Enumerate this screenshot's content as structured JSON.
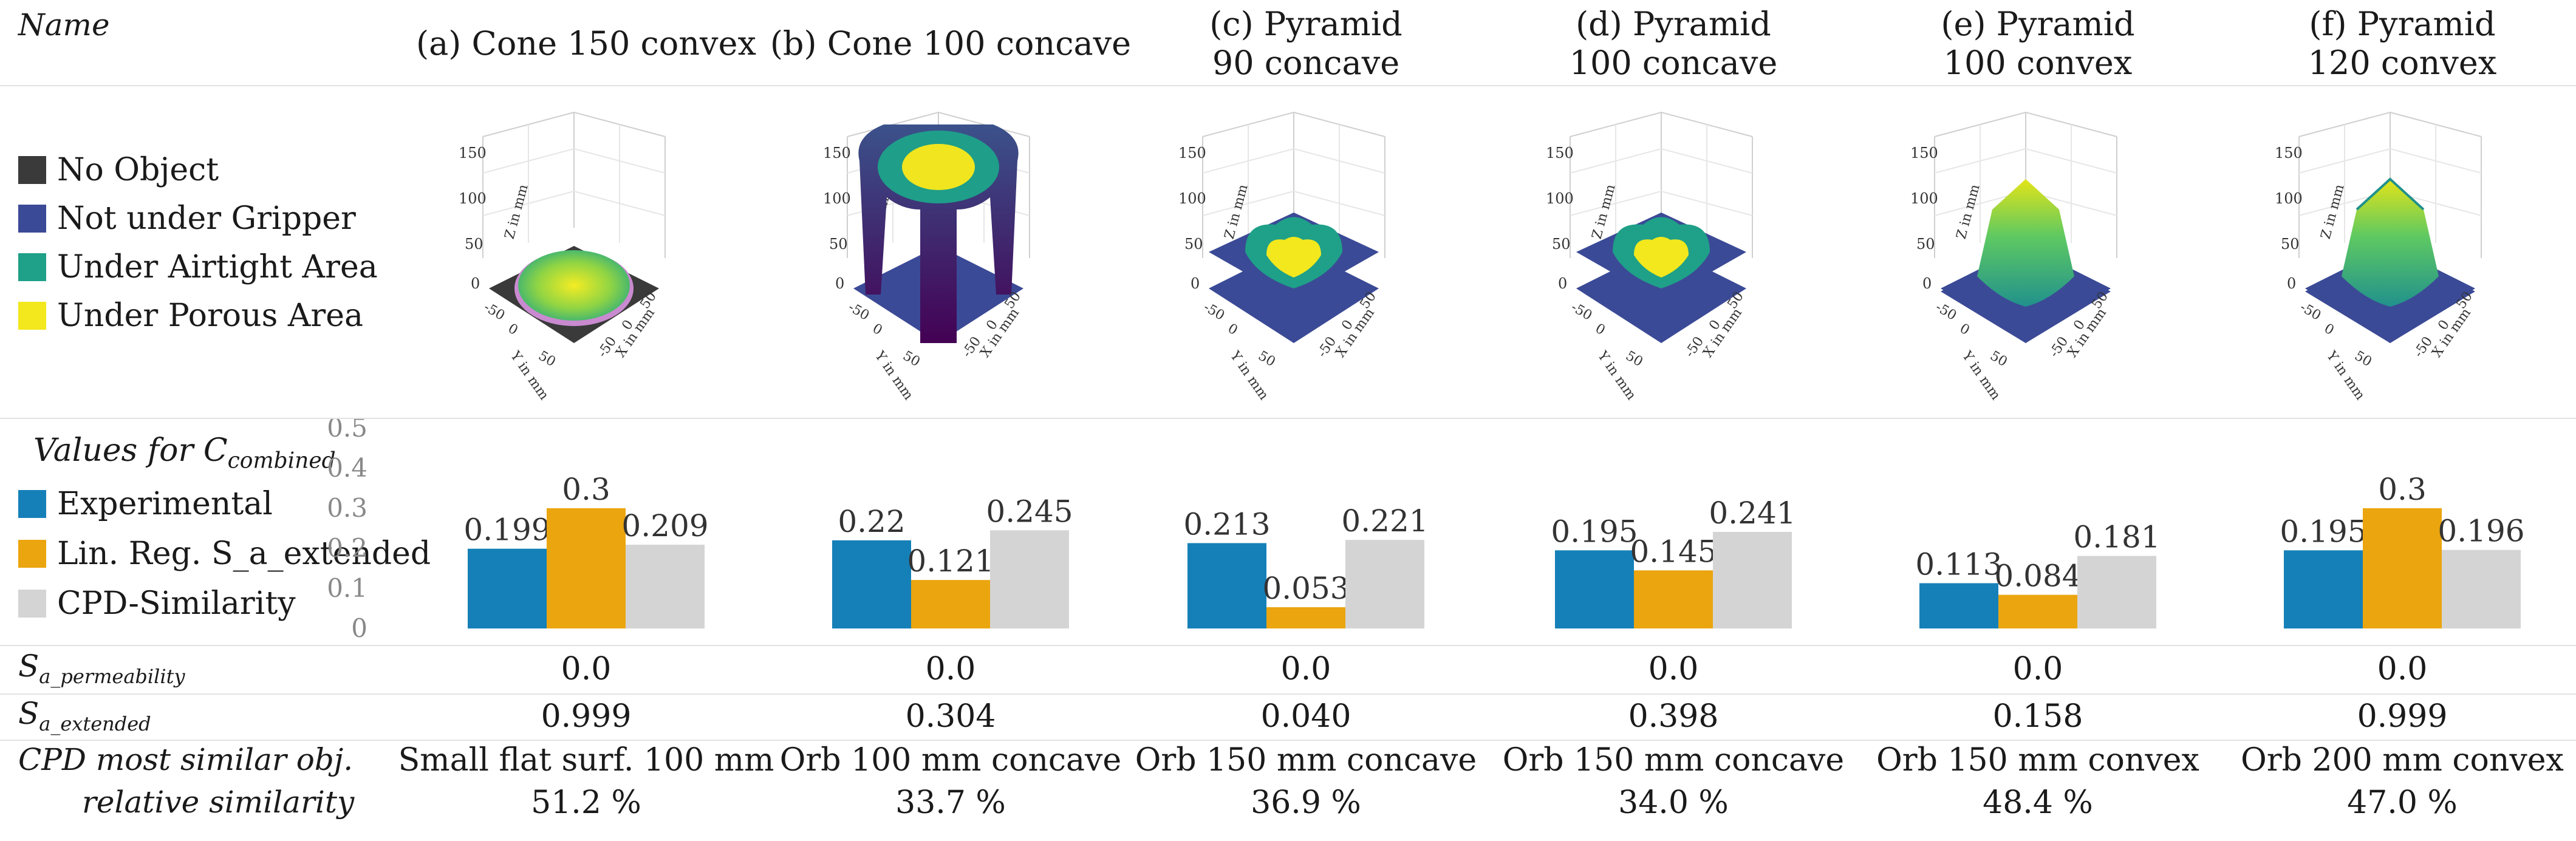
{
  "header": {
    "name_label": "Name"
  },
  "columns": [
    {
      "title": "(a) Cone 150 convex",
      "s_perm": "0.0",
      "s_ext": "0.999",
      "cpd_obj": "Small flat surf. 100 mm",
      "cpd_sim": "51.2 %"
    },
    {
      "title": "(b) Cone 100 concave",
      "s_perm": "0.0",
      "s_ext": "0.304",
      "cpd_obj": "Orb 100 mm concave",
      "cpd_sim": "33.7 %"
    },
    {
      "title": "(c) Pyramid 90 concave",
      "s_perm": "0.0",
      "s_ext": "0.040",
      "cpd_obj": "Orb 150 mm concave",
      "cpd_sim": "36.9 %"
    },
    {
      "title": "(d) Pyramid 100 concave",
      "s_perm": "0.0",
      "s_ext": "0.398",
      "cpd_obj": "Orb 150 mm concave",
      "cpd_sim": "34.0 %"
    },
    {
      "title": "(e) Pyramid 100 convex",
      "s_perm": "0.0",
      "s_ext": "0.158",
      "cpd_obj": "Orb 150 mm convex",
      "cpd_sim": "48.4 %"
    },
    {
      "title": "(f) Pyramid 120 convex",
      "s_perm": "0.0",
      "s_ext": "0.999",
      "cpd_obj": "Orb 200 mm convex",
      "cpd_sim": "47.0 %"
    }
  ],
  "legend_top": [
    {
      "label": "No Object",
      "color": "#3a3a3a"
    },
    {
      "label": "Not under Gripper",
      "color": "#3b4a96"
    },
    {
      "label": "Under Airtight Area",
      "color": "#1fa088"
    },
    {
      "label": "Under Porous Area",
      "color": "#f2e81d"
    }
  ],
  "plot3d_labels": {
    "z_axis": "Z in mm",
    "y_axis": "Y in mm",
    "x_axis": "X in mm",
    "z_ticks": [
      "150",
      "100",
      "50",
      "0"
    ],
    "xy_ticks": [
      "-50",
      "0",
      "50"
    ]
  },
  "values_section": {
    "title": "Values for C",
    "title_sub": "combined"
  },
  "row_labels": {
    "s_perm_main": "S",
    "s_perm_sub": "a_permeability",
    "s_ext_main": "S",
    "s_ext_sub": "a_extended",
    "cpd_line1": "CPD most similar obj.",
    "cpd_line2": "relative similarity"
  },
  "chart_data": {
    "type": "bar",
    "categories": [
      "(a) Cone 150 convex",
      "(b) Cone 100 concave",
      "(c) Pyramid 90 concave",
      "(d) Pyramid 100 concave",
      "(e) Pyramid 100 convex",
      "(f) Pyramid 120 convex"
    ],
    "series": [
      {
        "name": "Experimental",
        "color": "#1580b8",
        "values": [
          0.199,
          0.22,
          0.213,
          0.195,
          0.113,
          0.195
        ]
      },
      {
        "name": "Lin. Reg. S_a_extended",
        "color": "#eba50f",
        "values": [
          0.3,
          0.121,
          0.053,
          0.145,
          0.084,
          0.3
        ]
      },
      {
        "name": "CPD-Similarity",
        "color": "#d4d4d4",
        "values": [
          0.209,
          0.245,
          0.221,
          0.241,
          0.181,
          0.196
        ]
      }
    ],
    "data_labels": [
      [
        "0.199",
        "0.22",
        "0.213",
        "0.195",
        "0.113",
        "0.195"
      ],
      [
        "0.3",
        "0.121",
        "0.053",
        "0.145",
        "0.084",
        "0.3"
      ],
      [
        "0.209",
        "0.245",
        "0.221",
        "0.241",
        "0.181",
        "0.196"
      ]
    ],
    "yticks": [
      "0",
      "0.1",
      "0.2",
      "0.3",
      "0.4",
      "0.5"
    ],
    "ylim": [
      0,
      0.5
    ],
    "title": "Values for C combined",
    "xlabel": "",
    "ylabel": ""
  }
}
